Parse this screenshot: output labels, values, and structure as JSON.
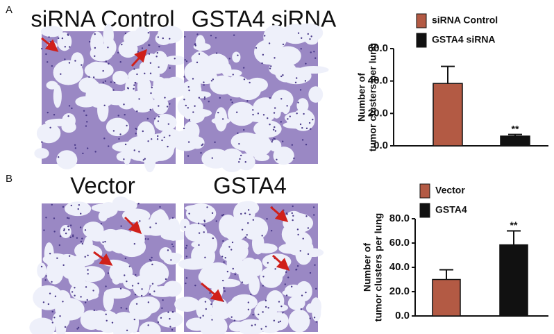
{
  "chart_data": [
    {
      "type": "bar",
      "panel": "A",
      "image_titles": [
        "siRNA Control",
        "GSTA4 siRNA"
      ],
      "y_label": [
        "Number of",
        "tumor clusters per lung"
      ],
      "categories": [
        "siRNA Control",
        "GSTA4 siRNA"
      ],
      "values": [
        38.5,
        6
      ],
      "errors": [
        10.5,
        1
      ],
      "colors": [
        "#b35a44",
        "#111111"
      ],
      "annotations": [
        null,
        "**"
      ],
      "ylim": [
        0,
        60
      ],
      "yticks": [
        {
          "value": 0,
          "label": "0.0"
        },
        {
          "value": 20,
          "label": "20.0"
        },
        {
          "value": 40,
          "label": "40.0"
        },
        {
          "value": 60,
          "label": "60.0"
        }
      ]
    },
    {
      "type": "bar",
      "panel": "B",
      "image_titles": [
        "Vector",
        "GSTA4"
      ],
      "y_label": [
        "Number of",
        "tumor clusters per lung"
      ],
      "categories": [
        "Vector",
        "GSTA4"
      ],
      "values": [
        30,
        58.5
      ],
      "errors": [
        8,
        11.5
      ],
      "colors": [
        "#b35a44",
        "#111111"
      ],
      "annotations": [
        null,
        "**"
      ],
      "ylim": [
        0,
        80
      ],
      "yticks": [
        {
          "value": 0,
          "label": "0.0"
        },
        {
          "value": 20,
          "label": "20.0"
        },
        {
          "value": 40,
          "label": "40.0"
        },
        {
          "value": 60,
          "label": "60.0"
        },
        {
          "value": 80,
          "label": "80.0"
        }
      ]
    }
  ]
}
